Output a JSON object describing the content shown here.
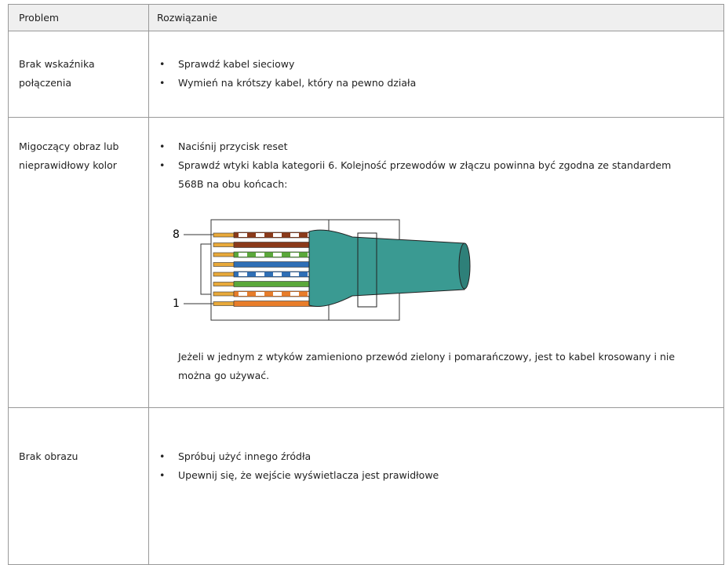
{
  "table": {
    "header": [
      "Problem",
      "Rozwiązanie"
    ],
    "rows": [
      {
        "problem": [
          "Brak wskaźnika",
          "połączenia"
        ],
        "bullets": [
          "Sprawdź kabel sieciowy",
          "Wymień na krótszy kabel, który na pewno działa"
        ]
      },
      {
        "problem": [
          "Migoczący obraz lub",
          "nieprawidłowy kolor"
        ],
        "bullets": [
          "Naciśnij przycisk reset",
          "Sprawdź wtyki kabla kategorii 6. Kolejność przewodów w złączu powinna być zgodna ze standardem 568B na obu końcach:"
        ],
        "diagram": {
          "labels": [
            "8",
            "1"
          ]
        },
        "note": "Jeżeli w jednym z wtyków zamieniono przewód zielony i pomarańczowy, jest to kabel krosowany i nie można go używać."
      },
      {
        "problem": [
          "Brak obrazu"
        ],
        "bullets": [
          "Spróbuj użyć innego źródła",
          "Upewnij się, że wejście wyświetlacza jest prawidłowe"
        ]
      }
    ]
  }
}
